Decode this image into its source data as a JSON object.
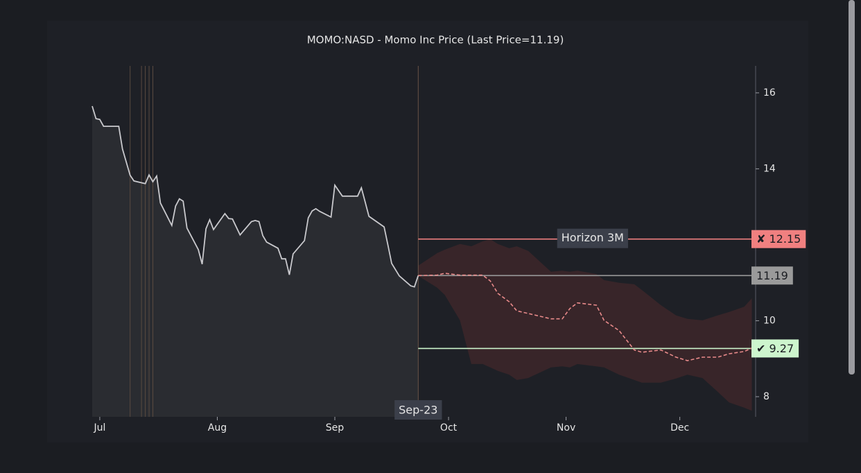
{
  "chart_data": {
    "type": "forecast",
    "title": "MOMO:NASD - Momo Inc Price (Last Price=11.19)",
    "xlim": [
      "Jun-29",
      "Dec-21"
    ],
    "xticks": [
      {
        "value": "Jul-01",
        "label": "Jul"
      },
      {
        "value": "Aug-01",
        "label": "Aug"
      },
      {
        "value": "Sep-01",
        "label": "Sep"
      },
      {
        "value": "Oct-01",
        "label": "Oct"
      },
      {
        "value": "Nov-01",
        "label": "Nov"
      },
      {
        "value": "Dec-01",
        "label": "Dec"
      }
    ],
    "ylim": [
      7.47,
      16.71
    ],
    "yticks": [
      8,
      10,
      12,
      14,
      16
    ],
    "price": {
      "color": "#c9c9cd",
      "x": [
        "Jun-29",
        "Jun-30",
        "Jul-01",
        "Jul-02",
        "Jul-06",
        "Jul-07",
        "Jul-09",
        "Jul-10",
        "Jul-13",
        "Jul-14",
        "Jul-15",
        "Jul-16",
        "Jul-17",
        "Jul-20",
        "Jul-21",
        "Jul-22",
        "Jul-23",
        "Jul-24",
        "Jul-27",
        "Jul-28",
        "Jul-29",
        "Jul-30",
        "Jul-31",
        "Aug-03",
        "Aug-04",
        "Aug-05",
        "Aug-07",
        "Aug-10",
        "Aug-11",
        "Aug-12",
        "Aug-13",
        "Aug-14",
        "Aug-17",
        "Aug-18",
        "Aug-19",
        "Aug-20",
        "Aug-21",
        "Aug-24",
        "Aug-25",
        "Aug-26",
        "Aug-27",
        "Aug-28",
        "Aug-31",
        "Sep-01",
        "Sep-03",
        "Sep-07",
        "Sep-08",
        "Sep-09",
        "Sep-10",
        "Sep-14",
        "Sep-15",
        "Sep-16",
        "Sep-18",
        "Sep-21",
        "Sep-22",
        "Sep-23"
      ],
      "values": [
        15.65,
        15.32,
        15.3,
        15.12,
        15.12,
        14.52,
        13.83,
        13.68,
        13.61,
        13.84,
        13.66,
        13.81,
        13.1,
        12.51,
        13.02,
        13.21,
        13.15,
        12.44,
        11.87,
        11.49,
        12.42,
        12.66,
        12.4,
        12.82,
        12.69,
        12.68,
        12.26,
        12.61,
        12.64,
        12.61,
        12.24,
        12.07,
        11.91,
        11.63,
        11.63,
        11.21,
        11.76,
        12.11,
        12.71,
        12.89,
        12.95,
        12.88,
        12.73,
        13.57,
        13.28,
        13.28,
        13.5,
        13.13,
        12.75,
        12.47,
        12.0,
        11.51,
        11.18,
        10.92,
        10.89,
        11.19
      ]
    },
    "event_dates": [
      "Jul-09",
      "Jul-12",
      "Jul-13",
      "Jul-14",
      "Jul-15"
    ],
    "forecast_start": "Sep-23",
    "forecast": {
      "color": "#e88a8a",
      "band_color": "#3a2629",
      "x": [
        "Sep-23",
        "Sep-28",
        "Sep-30",
        "Oct-04",
        "Oct-07",
        "Oct-10",
        "Oct-12",
        "Oct-14",
        "Oct-17",
        "Oct-19",
        "Oct-22",
        "Oct-28",
        "Oct-31",
        "Nov-02",
        "Nov-04",
        "Nov-09",
        "Nov-11",
        "Nov-15",
        "Nov-19",
        "Nov-21",
        "Nov-26",
        "Nov-30",
        "Dec-03",
        "Dec-07",
        "Dec-11",
        "Dec-14",
        "Dec-18",
        "Dec-20"
      ],
      "median": [
        11.19,
        11.2,
        11.25,
        11.2,
        11.2,
        11.2,
        11.05,
        10.72,
        10.5,
        10.26,
        10.19,
        10.05,
        10.05,
        10.32,
        10.47,
        10.41,
        10.01,
        9.74,
        9.23,
        9.17,
        9.23,
        9.04,
        8.95,
        9.04,
        9.04,
        9.13,
        9.19,
        9.28
      ],
      "upper": [
        11.45,
        11.78,
        11.87,
        12.02,
        11.96,
        12.09,
        12.15,
        12.02,
        11.91,
        11.96,
        11.84,
        11.29,
        11.32,
        11.29,
        11.32,
        11.23,
        11.07,
        11.0,
        10.96,
        10.81,
        10.41,
        10.14,
        10.05,
        10.01,
        10.14,
        10.23,
        10.37,
        10.59
      ],
      "lower": [
        11.18,
        10.87,
        10.68,
        10.01,
        8.86,
        8.86,
        8.77,
        8.68,
        8.58,
        8.44,
        8.49,
        8.77,
        8.8,
        8.77,
        8.86,
        8.8,
        8.77,
        8.58,
        8.44,
        8.37,
        8.37,
        8.48,
        8.58,
        8.49,
        8.13,
        7.85,
        7.71,
        7.63
      ]
    },
    "levels": [
      {
        "value": 12.15,
        "label": "✘ 12.15",
        "color": "#f08080",
        "text_color": "#1b1d22"
      },
      {
        "value": 11.19,
        "label": "11.19",
        "color": "#9a9a9a",
        "text_color": "#1b1d22"
      },
      {
        "value": 9.27,
        "label": "✔ 9.27",
        "color": "#cdf5cd",
        "text_color": "#1b1d22"
      }
    ],
    "annotation": {
      "text": "Horizon 3M",
      "x": "Nov-08",
      "y": 12.15
    }
  }
}
